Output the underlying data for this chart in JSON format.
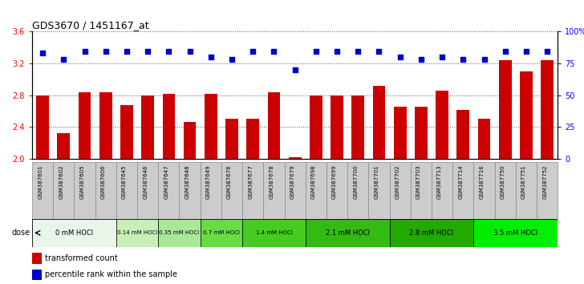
{
  "title": "GDS3670 / 1451167_at",
  "samples": [
    "GSM387601",
    "GSM387602",
    "GSM387605",
    "GSM387606",
    "GSM387645",
    "GSM387646",
    "GSM387647",
    "GSM387648",
    "GSM387649",
    "GSM387676",
    "GSM387677",
    "GSM387678",
    "GSM387679",
    "GSM387698",
    "GSM387699",
    "GSM387700",
    "GSM387701",
    "GSM387702",
    "GSM387703",
    "GSM387713",
    "GSM387714",
    "GSM387716",
    "GSM387750",
    "GSM387751",
    "GSM387752"
  ],
  "bar_values": [
    2.8,
    2.32,
    2.84,
    2.84,
    2.68,
    2.8,
    2.82,
    2.46,
    2.82,
    2.5,
    2.5,
    2.84,
    2.02,
    2.8,
    2.8,
    2.8,
    2.92,
    2.66,
    2.66,
    2.86,
    2.62,
    2.5,
    3.24,
    3.1,
    3.24
  ],
  "dot_values": [
    83,
    78,
    84,
    84,
    84,
    84,
    84,
    84,
    80,
    78,
    84,
    84,
    70,
    84,
    84,
    84,
    84,
    80,
    78,
    80,
    78,
    78,
    84,
    84,
    84
  ],
  "ylim_left": [
    2.0,
    3.6
  ],
  "ylim_right": [
    0,
    100
  ],
  "yticks_left": [
    2.0,
    2.4,
    2.8,
    3.2,
    3.6
  ],
  "yticks_right": [
    0,
    25,
    50,
    75,
    100
  ],
  "ytick_labels_right": [
    "0",
    "25",
    "50",
    "75",
    "100%"
  ],
  "groups": [
    {
      "label": "0 mM HOCl",
      "start": 0,
      "end": 4,
      "color": "#e8f5e8"
    },
    {
      "label": "0.14 mM HOCl",
      "start": 4,
      "end": 6,
      "color": "#c8efb8"
    },
    {
      "label": "0.35 mM HOCl",
      "start": 6,
      "end": 8,
      "color": "#a8e898"
    },
    {
      "label": "0.7 mM HOCl",
      "start": 8,
      "end": 10,
      "color": "#66dd44"
    },
    {
      "label": "1.4 mM HOCl",
      "start": 10,
      "end": 13,
      "color": "#44cc22"
    },
    {
      "label": "2.1 mM HOCl",
      "start": 13,
      "end": 17,
      "color": "#33bb11"
    },
    {
      "label": "2.8 mM HOCl",
      "start": 17,
      "end": 21,
      "color": "#22aa00"
    },
    {
      "label": "3.5 mM HOCl",
      "start": 21,
      "end": 25,
      "color": "#00ee00"
    }
  ],
  "bar_color": "#cc0000",
  "dot_color": "#0000cc",
  "grid_color": "#555555",
  "bg_color": "#ffffff",
  "xtick_bg": "#cccccc",
  "xtick_border": "#888888"
}
